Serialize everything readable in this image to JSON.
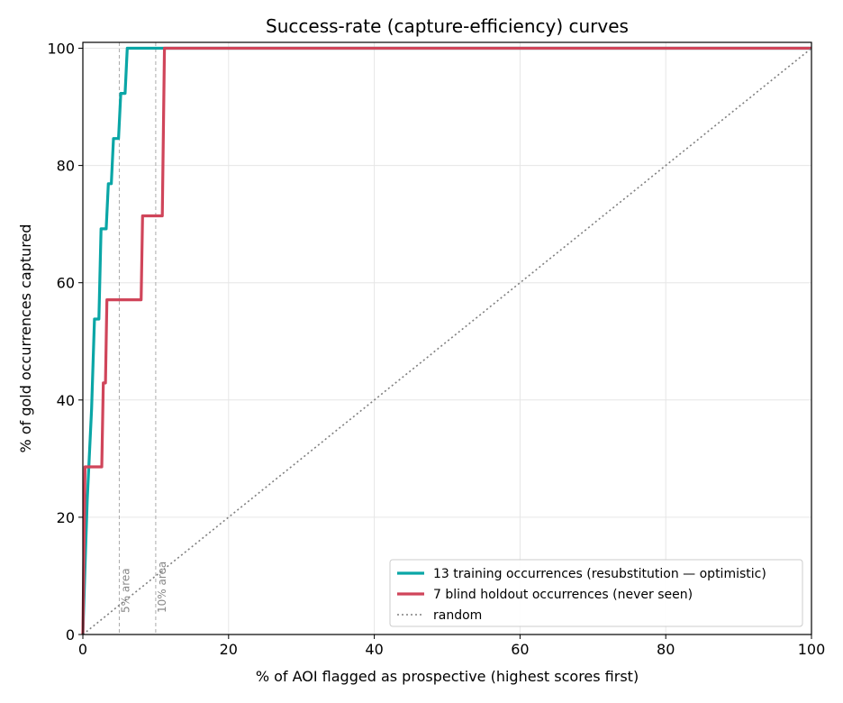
{
  "chart_data": {
    "type": "line",
    "title": "Success-rate (capture-efficiency) curves",
    "xlabel": "% of AOI flagged as prospective (highest scores first)",
    "ylabel": "% of gold occurrences captured",
    "xlim": [
      0,
      100
    ],
    "ylim": [
      0,
      101
    ],
    "xticks": [
      0,
      20,
      40,
      60,
      80,
      100
    ],
    "yticks": [
      0,
      20,
      40,
      60,
      80,
      100
    ],
    "grid": true,
    "legend_position": "bottom-right",
    "series": [
      {
        "name": "13 training occurrences (resubstitution — optimistic)",
        "color": "#0aa6a6",
        "style": "solid",
        "points": [
          [
            0,
            0
          ],
          [
            0.4,
            15.4
          ],
          [
            0.6,
            23.1
          ],
          [
            0.9,
            30.8
          ],
          [
            1.2,
            38.5
          ],
          [
            1.4,
            46.2
          ],
          [
            1.6,
            53.8
          ],
          [
            2.2,
            53.8
          ],
          [
            2.5,
            69.2
          ],
          [
            3.2,
            69.2
          ],
          [
            3.5,
            76.9
          ],
          [
            3.9,
            76.9
          ],
          [
            4.2,
            84.6
          ],
          [
            4.9,
            84.6
          ],
          [
            5.2,
            92.3
          ],
          [
            5.8,
            92.3
          ],
          [
            6.1,
            100
          ],
          [
            100,
            100
          ]
        ]
      },
      {
        "name": "7 blind holdout occurrences (never seen)",
        "color": "#d0455a",
        "style": "solid",
        "points": [
          [
            0,
            0
          ],
          [
            0.3,
            28.6
          ],
          [
            2.6,
            28.6
          ],
          [
            2.8,
            42.9
          ],
          [
            3.1,
            42.9
          ],
          [
            3.3,
            57.1
          ],
          [
            8.0,
            57.1
          ],
          [
            8.2,
            71.4
          ],
          [
            10.9,
            71.4
          ],
          [
            11.2,
            100
          ],
          [
            100,
            100
          ]
        ]
      },
      {
        "name": "random",
        "color": "#7f7f7f",
        "style": "dotted",
        "points": [
          [
            0,
            0
          ],
          [
            100,
            100
          ]
        ]
      }
    ],
    "annotations": [
      {
        "x": 5,
        "label": "5% area"
      },
      {
        "x": 10,
        "label": "10% area"
      }
    ]
  }
}
